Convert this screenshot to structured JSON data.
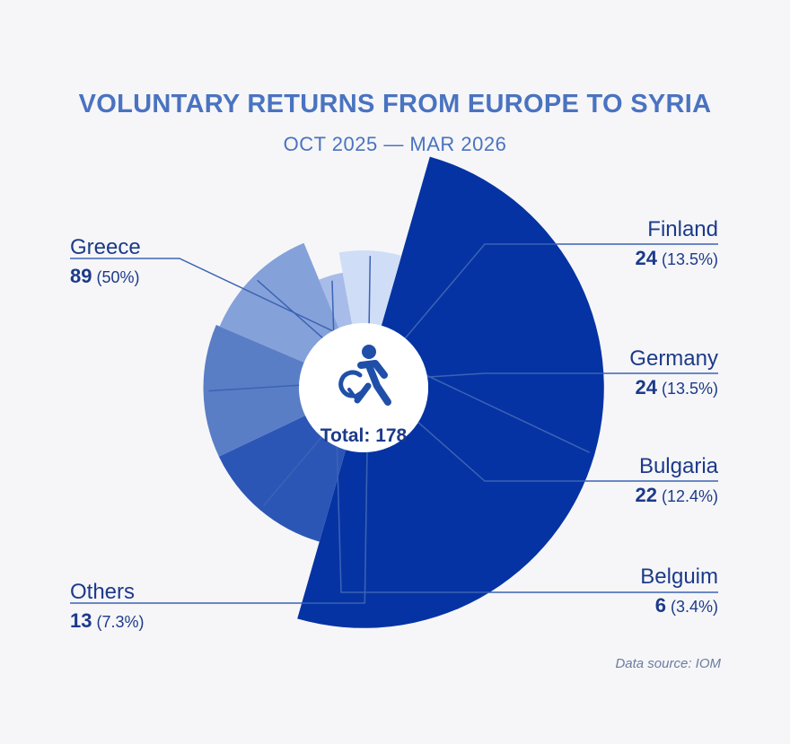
{
  "chart_data": {
    "type": "pie",
    "variant": "nightingale-rose-donut",
    "title": "VOLUNTARY RETURNS FROM EUROPE TO SYRIA",
    "subtitle": "OCT 2025 — MAR 2026",
    "center_icon": "person-returning-arrow-icon",
    "total_label": "Total: 178",
    "total": 178,
    "slices": [
      {
        "label": "Greece",
        "value": 89,
        "percent_label": "(50%)",
        "color": "#0533a3"
      },
      {
        "label": "Finland",
        "value": 24,
        "percent_label": "(13.5%)",
        "color": "#2c56b6"
      },
      {
        "label": "Germany",
        "value": 24,
        "percent_label": "(13.5%)",
        "color": "#5a7ec6"
      },
      {
        "label": "Bulgaria",
        "value": 22,
        "percent_label": "(12.4%)",
        "color": "#85a1d9"
      },
      {
        "label": "Belguim",
        "value": 6,
        "percent_label": "(3.4%)",
        "color": "#a7bce8"
      },
      {
        "label": "Others",
        "value": 13,
        "percent_label": "(7.3%)",
        "color": "#cfddf6"
      }
    ],
    "source": "Data source: IOM"
  },
  "colors": {
    "title": "#4a73c0",
    "label": "#1c3a8a",
    "source": "#6a7d9f",
    "leader": "#3b63b5",
    "background": "#f6f6f8",
    "center": "#ffffff"
  }
}
